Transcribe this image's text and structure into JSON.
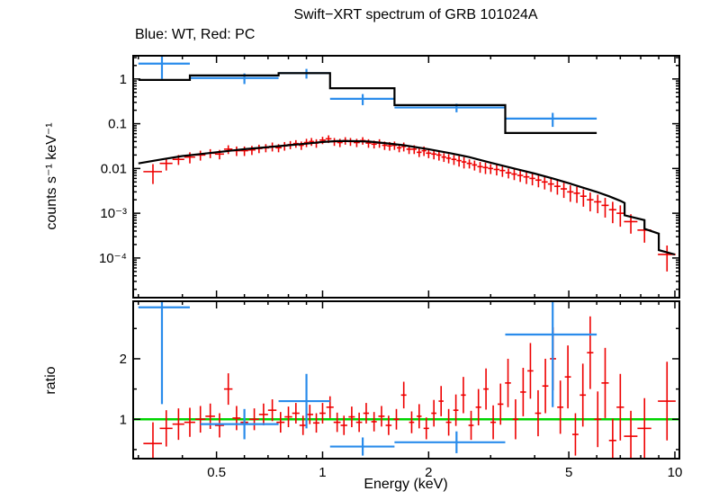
{
  "chart_data": {
    "type": "scatter",
    "title": "Swift−XRT spectrum of GRB 101024A",
    "subtitle": "Blue: WT, Red: PC",
    "xlabel": "Energy (keV)",
    "ylabel_top": "counts s⁻¹ keV⁻¹",
    "ylabel_bottom": "ratio",
    "legend": {
      "blue_series": "WT",
      "red_series": "PC"
    },
    "colors": {
      "wt_blue": "#2a8ceb",
      "pc_red": "#ee0000",
      "model_black": "#000000",
      "ratio_green": "#00d400",
      "frame": "#000000"
    },
    "x_axis": {
      "scale": "log",
      "min": 0.29,
      "max": 10.3,
      "major_ticks": [
        0.5,
        1,
        2,
        5,
        10
      ],
      "major_labels": [
        "0.5",
        "1",
        "2",
        "5",
        "10"
      ],
      "minor_ticks": [
        0.3,
        0.4,
        0.6,
        0.7,
        0.8,
        0.9,
        3,
        4,
        6,
        7,
        8,
        9
      ]
    },
    "y_axis_top": {
      "scale": "log",
      "min": 1.3e-05,
      "max": 3.3,
      "major_ticks": [
        1,
        0.1,
        0.01,
        0.001,
        0.0001
      ],
      "major_labels": [
        "1",
        "0.1",
        "0.01",
        "10⁻³",
        "10⁻⁴"
      ]
    },
    "y_axis_bottom": {
      "scale": "linear",
      "min": 0.35,
      "max": 2.95,
      "major_ticks": [
        1,
        2
      ],
      "major_labels": [
        "1",
        "2"
      ],
      "minor_ticks": [
        0.5,
        1.5,
        2.5
      ]
    },
    "ratio_reference": 1,
    "wt_spectrum_points": [
      [
        0.35,
        2.2,
        0.3,
        0.42,
        1.2
      ],
      [
        0.6,
        1.05,
        0.42,
        0.75,
        0.28
      ],
      [
        0.9,
        1.35,
        0.75,
        1.05,
        0.33
      ],
      [
        1.3,
        0.36,
        1.05,
        1.6,
        0.1
      ],
      [
        2.4,
        0.23,
        1.6,
        3.3,
        0.05
      ],
      [
        4.5,
        0.13,
        3.3,
        6.0,
        0.045
      ]
    ],
    "wt_model_steps": [
      [
        0.3,
        0.42,
        0.95
      ],
      [
        0.42,
        0.75,
        1.2
      ],
      [
        0.75,
        1.05,
        1.35
      ],
      [
        1.05,
        1.6,
        0.62
      ],
      [
        1.6,
        3.3,
        0.26
      ],
      [
        3.3,
        6.0,
        0.062
      ]
    ],
    "pc_spectrum_points": [
      [
        0.33,
        0.0085,
        0.02,
        0.004
      ],
      [
        0.36,
        0.013,
        0.015,
        0.004
      ],
      [
        0.39,
        0.016,
        0.015,
        0.004
      ],
      [
        0.42,
        0.018,
        0.015,
        0.005
      ],
      [
        0.45,
        0.02,
        0.015,
        0.005
      ],
      [
        0.48,
        0.022,
        0.015,
        0.005
      ],
      [
        0.51,
        0.021,
        0.015,
        0.005
      ],
      [
        0.54,
        0.027,
        0.015,
        0.006
      ],
      [
        0.57,
        0.025,
        0.015,
        0.006
      ],
      [
        0.6,
        0.025,
        0.015,
        0.006
      ],
      [
        0.63,
        0.026,
        0.015,
        0.006
      ],
      [
        0.66,
        0.028,
        0.015,
        0.006
      ],
      [
        0.69,
        0.029,
        0.015,
        0.006
      ],
      [
        0.72,
        0.031,
        0.015,
        0.007
      ],
      [
        0.75,
        0.029,
        0.015,
        0.006
      ],
      [
        0.78,
        0.032,
        0.015,
        0.007
      ],
      [
        0.81,
        0.034,
        0.015,
        0.007
      ],
      [
        0.84,
        0.036,
        0.015,
        0.007
      ],
      [
        0.87,
        0.033,
        0.015,
        0.007
      ],
      [
        0.9,
        0.038,
        0.015,
        0.008
      ],
      [
        0.93,
        0.04,
        0.015,
        0.008
      ],
      [
        0.96,
        0.037,
        0.015,
        0.008
      ],
      [
        1.0,
        0.043,
        0.02,
        0.008
      ],
      [
        1.04,
        0.046,
        0.02,
        0.009
      ],
      [
        1.08,
        0.04,
        0.02,
        0.008
      ],
      [
        1.12,
        0.038,
        0.02,
        0.008
      ],
      [
        1.16,
        0.042,
        0.02,
        0.008
      ],
      [
        1.2,
        0.04,
        0.02,
        0.008
      ],
      [
        1.25,
        0.038,
        0.025,
        0.008
      ],
      [
        1.3,
        0.042,
        0.025,
        0.008
      ],
      [
        1.35,
        0.037,
        0.025,
        0.008
      ],
      [
        1.4,
        0.035,
        0.025,
        0.007
      ],
      [
        1.45,
        0.037,
        0.025,
        0.008
      ],
      [
        1.5,
        0.033,
        0.025,
        0.007
      ],
      [
        1.55,
        0.032,
        0.025,
        0.007
      ],
      [
        1.6,
        0.033,
        0.025,
        0.007
      ],
      [
        1.65,
        0.029,
        0.025,
        0.006
      ],
      [
        1.7,
        0.031,
        0.025,
        0.007
      ],
      [
        1.76,
        0.027,
        0.03,
        0.006
      ],
      [
        1.82,
        0.027,
        0.03,
        0.006
      ],
      [
        1.88,
        0.023,
        0.03,
        0.005
      ],
      [
        1.94,
        0.025,
        0.03,
        0.006
      ],
      [
        2.0,
        0.022,
        0.035,
        0.005
      ],
      [
        2.07,
        0.021,
        0.035,
        0.005
      ],
      [
        2.14,
        0.02,
        0.035,
        0.005
      ],
      [
        2.21,
        0.018,
        0.035,
        0.004
      ],
      [
        2.28,
        0.017,
        0.035,
        0.004
      ],
      [
        2.36,
        0.016,
        0.04,
        0.004
      ],
      [
        2.44,
        0.015,
        0.04,
        0.004
      ],
      [
        2.52,
        0.014,
        0.04,
        0.004
      ],
      [
        2.61,
        0.013,
        0.045,
        0.003
      ],
      [
        2.7,
        0.012,
        0.045,
        0.003
      ],
      [
        2.8,
        0.011,
        0.05,
        0.003
      ],
      [
        2.9,
        0.0105,
        0.05,
        0.003
      ],
      [
        3.0,
        0.01,
        0.05,
        0.0025
      ],
      [
        3.12,
        0.0095,
        0.06,
        0.0025
      ],
      [
        3.24,
        0.009,
        0.06,
        0.0025
      ],
      [
        3.37,
        0.008,
        0.065,
        0.002
      ],
      [
        3.5,
        0.0075,
        0.065,
        0.002
      ],
      [
        3.64,
        0.007,
        0.07,
        0.002
      ],
      [
        3.79,
        0.0065,
        0.075,
        0.002
      ],
      [
        3.94,
        0.006,
        0.075,
        0.0018
      ],
      [
        4.1,
        0.0055,
        0.08,
        0.0017
      ],
      [
        4.27,
        0.005,
        0.085,
        0.0016
      ],
      [
        4.45,
        0.0045,
        0.09,
        0.0015
      ],
      [
        4.64,
        0.004,
        0.095,
        0.0014
      ],
      [
        4.84,
        0.0035,
        0.1,
        0.0013
      ],
      [
        5.05,
        0.003,
        0.105,
        0.0012
      ],
      [
        5.27,
        0.0028,
        0.11,
        0.0011
      ],
      [
        5.5,
        0.0024,
        0.115,
        0.001
      ],
      [
        5.75,
        0.002,
        0.125,
        0.0009
      ],
      [
        6.04,
        0.0018,
        0.145,
        0.0008
      ],
      [
        6.34,
        0.0015,
        0.15,
        0.0007
      ],
      [
        6.66,
        0.0012,
        0.16,
        0.0006
      ],
      [
        7.0,
        0.001,
        0.17,
        0.0005
      ],
      [
        7.5,
        0.00065,
        0.33,
        0.0003
      ],
      [
        8.2,
        0.00042,
        0.37,
        0.0002
      ],
      [
        9.5,
        0.00012,
        0.55,
        7e-05
      ]
    ],
    "pc_model_curve": [
      [
        0.3,
        0.013
      ],
      [
        0.35,
        0.016
      ],
      [
        0.4,
        0.019
      ],
      [
        0.45,
        0.021
      ],
      [
        0.5,
        0.023
      ],
      [
        0.6,
        0.027
      ],
      [
        0.7,
        0.03
      ],
      [
        0.8,
        0.033
      ],
      [
        0.9,
        0.036
      ],
      [
        1.0,
        0.039
      ],
      [
        1.1,
        0.041
      ],
      [
        1.2,
        0.041
      ],
      [
        1.35,
        0.04
      ],
      [
        1.5,
        0.037
      ],
      [
        1.7,
        0.033
      ],
      [
        2.0,
        0.027
      ],
      [
        2.3,
        0.022
      ],
      [
        2.6,
        0.018
      ],
      [
        3.0,
        0.0135
      ],
      [
        3.5,
        0.01
      ],
      [
        4.0,
        0.0077
      ],
      [
        4.5,
        0.006
      ],
      [
        5.0,
        0.0047
      ],
      [
        5.5,
        0.0037
      ],
      [
        6.0,
        0.003
      ],
      [
        6.5,
        0.0024
      ],
      [
        7.0,
        0.0019
      ],
      [
        7.2,
        0.0017
      ],
      [
        7.2,
        0.0009
      ],
      [
        8.2,
        0.0007
      ],
      [
        8.2,
        0.00045
      ],
      [
        9.0,
        0.00035
      ],
      [
        9.0,
        0.00015
      ],
      [
        10.0,
        0.00012
      ]
    ],
    "wt_ratio_points": [
      [
        0.35,
        2.85,
        0.3,
        0.42,
        1.6
      ],
      [
        0.6,
        0.92,
        0.45,
        0.75,
        0.25
      ],
      [
        0.9,
        1.3,
        0.75,
        1.05,
        0.45
      ],
      [
        1.3,
        0.55,
        1.05,
        1.6,
        0.15
      ],
      [
        2.4,
        0.62,
        1.6,
        3.3,
        0.18
      ],
      [
        4.5,
        2.4,
        3.3,
        6.0,
        1.2
      ]
    ],
    "pc_ratio_points": [
      [
        0.33,
        0.6,
        0.02,
        0.35
      ],
      [
        0.36,
        0.85,
        0.015,
        0.3
      ],
      [
        0.39,
        0.92,
        0.015,
        0.26
      ],
      [
        0.42,
        0.95,
        0.015,
        0.24
      ],
      [
        0.45,
        1.0,
        0.015,
        0.22
      ],
      [
        0.48,
        1.05,
        0.015,
        0.21
      ],
      [
        0.51,
        0.9,
        0.015,
        0.2
      ],
      [
        0.54,
        1.5,
        0.015,
        0.26
      ],
      [
        0.57,
        1.02,
        0.015,
        0.2
      ],
      [
        0.6,
        0.95,
        0.015,
        0.19
      ],
      [
        0.64,
        1.0,
        0.02,
        0.18
      ],
      [
        0.68,
        1.08,
        0.02,
        0.18
      ],
      [
        0.72,
        1.15,
        0.02,
        0.18
      ],
      [
        0.76,
        0.95,
        0.02,
        0.17
      ],
      [
        0.8,
        1.04,
        0.02,
        0.17
      ],
      [
        0.84,
        1.1,
        0.02,
        0.17
      ],
      [
        0.88,
        0.9,
        0.02,
        0.16
      ],
      [
        0.92,
        1.08,
        0.02,
        0.16
      ],
      [
        0.96,
        0.94,
        0.02,
        0.16
      ],
      [
        1.0,
        1.1,
        0.02,
        0.17
      ],
      [
        1.05,
        1.2,
        0.025,
        0.18
      ],
      [
        1.1,
        0.95,
        0.025,
        0.16
      ],
      [
        1.15,
        0.9,
        0.025,
        0.16
      ],
      [
        1.21,
        1.04,
        0.025,
        0.17
      ],
      [
        1.27,
        0.95,
        0.025,
        0.16
      ],
      [
        1.33,
        1.1,
        0.025,
        0.17
      ],
      [
        1.4,
        0.96,
        0.025,
        0.16
      ],
      [
        1.47,
        1.05,
        0.03,
        0.17
      ],
      [
        1.54,
        0.9,
        0.03,
        0.16
      ],
      [
        1.62,
        1.0,
        0.03,
        0.17
      ],
      [
        1.7,
        1.4,
        0.03,
        0.22
      ],
      [
        1.79,
        0.95,
        0.03,
        0.18
      ],
      [
        1.88,
        1.05,
        0.03,
        0.2
      ],
      [
        1.97,
        0.85,
        0.035,
        0.18
      ],
      [
        2.07,
        1.1,
        0.035,
        0.22
      ],
      [
        2.17,
        1.3,
        0.035,
        0.25
      ],
      [
        2.28,
        0.95,
        0.04,
        0.22
      ],
      [
        2.39,
        1.15,
        0.04,
        0.26
      ],
      [
        2.51,
        1.4,
        0.04,
        0.3
      ],
      [
        2.64,
        0.9,
        0.045,
        0.24
      ],
      [
        2.77,
        1.2,
        0.05,
        0.3
      ],
      [
        2.91,
        1.5,
        0.05,
        0.34
      ],
      [
        3.05,
        0.95,
        0.055,
        0.28
      ],
      [
        3.2,
        1.25,
        0.06,
        0.34
      ],
      [
        3.36,
        1.6,
        0.065,
        0.4
      ],
      [
        3.53,
        1.0,
        0.065,
        0.33
      ],
      [
        3.71,
        1.45,
        0.07,
        0.4
      ],
      [
        3.89,
        1.8,
        0.075,
        0.46
      ],
      [
        4.09,
        1.1,
        0.08,
        0.38
      ],
      [
        4.29,
        1.55,
        0.085,
        0.45
      ],
      [
        4.51,
        2.0,
        0.09,
        0.52
      ],
      [
        4.73,
        1.2,
        0.095,
        0.44
      ],
      [
        4.97,
        1.7,
        0.1,
        0.52
      ],
      [
        5.22,
        0.75,
        0.105,
        0.35
      ],
      [
        5.48,
        1.4,
        0.11,
        0.52
      ],
      [
        5.75,
        2.1,
        0.12,
        0.6
      ],
      [
        6.04,
        1.0,
        0.14,
        0.46
      ],
      [
        6.34,
        1.6,
        0.15,
        0.58
      ],
      [
        6.66,
        0.65,
        0.16,
        0.36
      ],
      [
        7.0,
        1.2,
        0.17,
        0.55
      ],
      [
        7.5,
        0.72,
        0.33,
        0.42
      ],
      [
        8.2,
        0.85,
        0.37,
        0.5
      ],
      [
        9.5,
        1.3,
        0.55,
        0.65
      ]
    ]
  }
}
